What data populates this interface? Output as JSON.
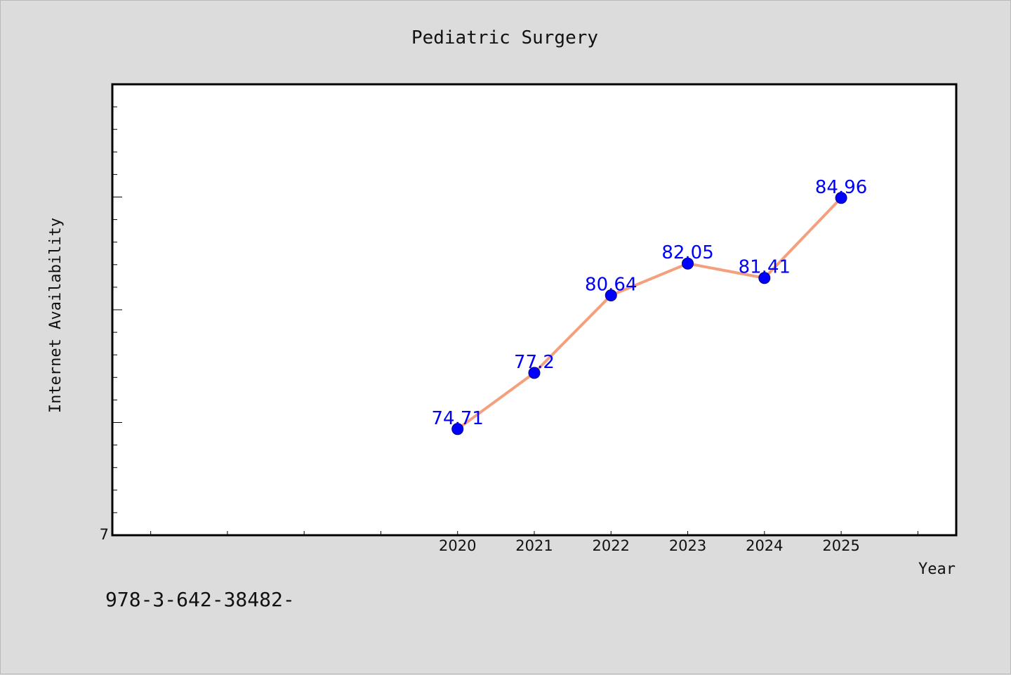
{
  "chart_data": {
    "type": "line",
    "title": "Pediatric Surgery",
    "xlabel": "Year",
    "ylabel": "Internet Availability",
    "x": [
      "2020",
      "2021",
      "2022",
      "2023",
      "2024",
      "2025"
    ],
    "x_tick_labels": [
      "2020",
      "2021",
      "2022",
      "2023",
      "2024",
      "2025"
    ],
    "y_tick_label_visible": "7",
    "series": [
      {
        "values": [
          74.71,
          77.2,
          80.64,
          82.05,
          81.41,
          84.96
        ],
        "data_labels": [
          "74.71",
          "77.2",
          "80.64",
          "82.05",
          "81.41",
          "84.96"
        ],
        "line_color": "#f4a07e",
        "marker_color": "#0000ff"
      }
    ],
    "xlim": [
      2015.5,
      2026.5
    ],
    "ylim": [
      70,
      90
    ],
    "grid": false,
    "legend": "none"
  },
  "footer": {
    "isbn_text": "978-3-642-38482-"
  },
  "colors": {
    "background": "#dcdcdc",
    "plot_area": "#ffffff",
    "line": "#f4a07e",
    "marker": "#0000ff",
    "data_label": "#0000ff"
  }
}
